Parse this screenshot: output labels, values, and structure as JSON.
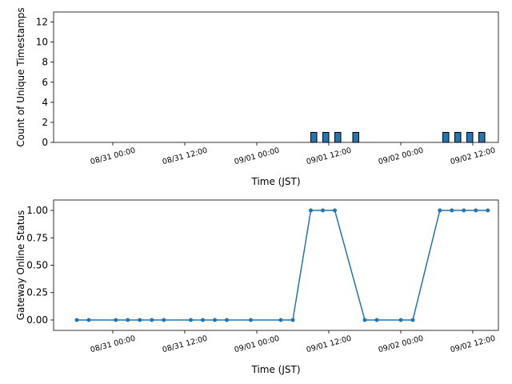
{
  "chart_data": [
    {
      "type": "bar",
      "xlabel": "Time (JST)",
      "ylabel": "Count of Unique Timestamps",
      "color": "#1f77b4",
      "x": [
        "09/01 09:00",
        "09/01 11:00",
        "09/01 13:00",
        "09/01 16:00",
        "09/02 07:00",
        "09/02 09:00",
        "09/02 11:00",
        "09/02 13:00"
      ],
      "values": [
        1,
        1,
        1,
        1,
        1,
        1,
        1,
        1
      ],
      "xlim": [
        "08/30 14:08",
        "09/02 16:16"
      ],
      "xticks": [
        "08/31 00:00",
        "08/31 12:00",
        "09/01 00:00",
        "09/01 12:00",
        "09/02 00:00",
        "09/02 12:00"
      ],
      "ylim": [
        0,
        13
      ],
      "yticks": [
        0,
        2,
        4,
        6,
        8,
        10,
        12
      ]
    },
    {
      "type": "line",
      "xlabel": "Time (JST)",
      "ylabel": "Gateway Online Status",
      "color": "#1f77b4",
      "x": [
        "08/30 18:00",
        "08/30 20:00",
        "08/31 00:30",
        "08/31 02:30",
        "08/31 04:30",
        "08/31 06:30",
        "08/31 08:30",
        "08/31 13:00",
        "08/31 15:00",
        "08/31 17:00",
        "08/31 19:00",
        "08/31 23:00",
        "09/01 04:00",
        "09/01 06:00",
        "09/01 09:00",
        "09/01 11:00",
        "09/01 13:00",
        "09/01 18:00",
        "09/01 20:00",
        "09/02 00:00",
        "09/02 02:00",
        "09/02 06:30",
        "09/02 08:30",
        "09/02 10:30",
        "09/02 12:30",
        "09/02 14:30"
      ],
      "values": [
        0,
        0,
        0,
        0,
        0,
        0,
        0,
        0,
        0,
        0,
        0,
        0,
        0,
        0,
        1,
        1,
        1,
        0,
        0,
        0,
        0,
        1,
        1,
        1,
        1,
        1
      ],
      "xlim": [
        "08/30 14:08",
        "09/02 16:16"
      ],
      "xticks": [
        "08/31 00:00",
        "08/31 12:00",
        "09/01 00:00",
        "09/01 12:00",
        "09/02 00:00",
        "09/02 12:00"
      ],
      "ylim": [
        -0.095,
        1.095
      ],
      "yticks": [
        {
          "value": 0,
          "label": "0.00"
        },
        {
          "value": 0.25,
          "label": "0.25"
        },
        {
          "value": 0.5,
          "label": "0.50"
        },
        {
          "value": 0.75,
          "label": "0.75"
        },
        {
          "value": 1,
          "label": "1.00"
        }
      ]
    }
  ]
}
